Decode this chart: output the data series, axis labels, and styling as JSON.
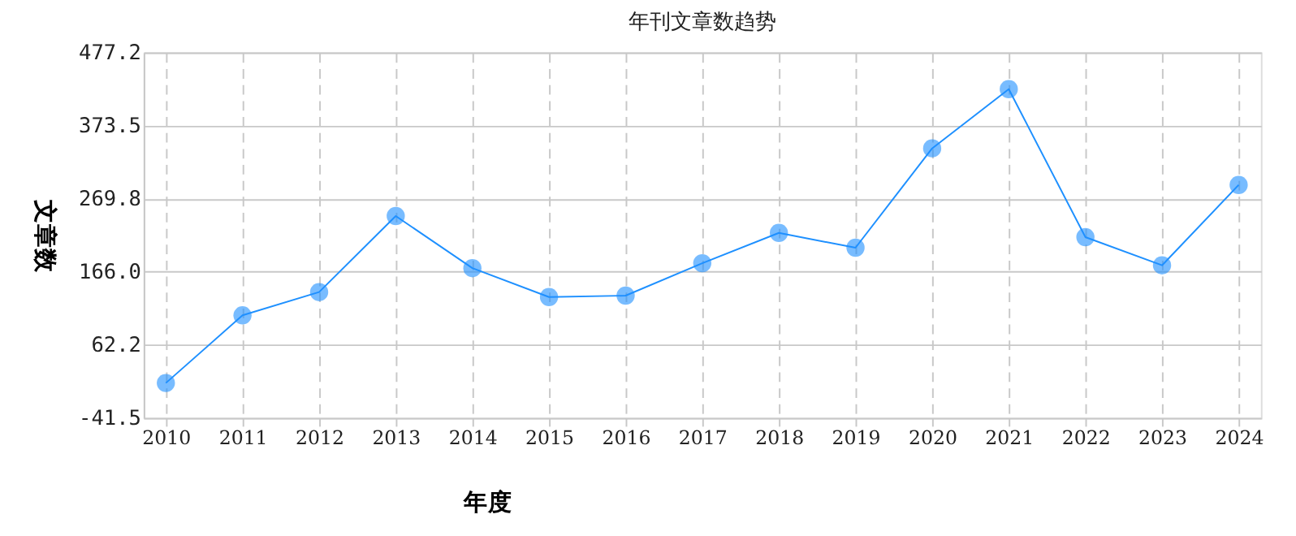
{
  "chart_data": {
    "type": "line",
    "title": "年刊文章数趋势",
    "xlabel": "年度",
    "ylabel": "文章数",
    "categories": [
      "2010",
      "2011",
      "2012",
      "2013",
      "2014",
      "2015",
      "2016",
      "2017",
      "2018",
      "2019",
      "2020",
      "2021",
      "2022",
      "2023",
      "2024"
    ],
    "series": [
      {
        "color": "#1e90ff",
        "values": [
          8,
          104,
          137,
          245,
          171,
          130,
          132,
          178,
          221,
          200,
          341,
          425,
          215,
          175,
          289
        ]
      }
    ],
    "ylim": [
      -41.5,
      477.2
    ],
    "yticks": [
      {
        "value": -41.5,
        "label": "-41.5"
      },
      {
        "value": 62.2,
        "label": "62.2"
      },
      {
        "value": 166,
        "label": "166.0"
      },
      {
        "value": 269.8,
        "label": "269.8"
      },
      {
        "value": 373.5,
        "label": "373.5"
      },
      {
        "value": 477.2,
        "label": "477.2"
      }
    ],
    "grid": true,
    "marker": "circle",
    "line_style": "solid"
  }
}
